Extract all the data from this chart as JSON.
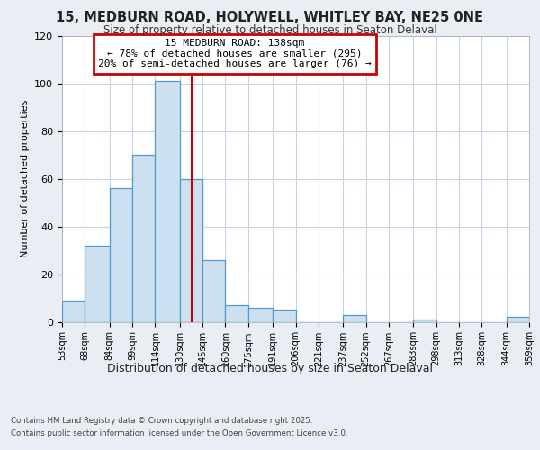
{
  "title_line1": "15, MEDBURN ROAD, HOLYWELL, WHITLEY BAY, NE25 0NE",
  "title_line2": "Size of property relative to detached houses in Seaton Delaval",
  "xlabel": "Distribution of detached houses by size in Seaton Delaval",
  "ylabel": "Number of detached properties",
  "bar_edges": [
    53,
    68,
    84,
    99,
    114,
    130,
    145,
    160,
    175,
    191,
    206,
    221,
    237,
    252,
    267,
    283,
    298,
    313,
    328,
    344,
    359
  ],
  "bar_heights": [
    9,
    32,
    56,
    70,
    101,
    60,
    26,
    7,
    6,
    5,
    0,
    0,
    3,
    0,
    0,
    1,
    0,
    0,
    0,
    2
  ],
  "bar_color": "#cce0f0",
  "bar_edgecolor": "#5599cc",
  "vline_x": 138,
  "vline_color": "#cc0000",
  "annotation_text_line1": "15 MEDBURN ROAD: 138sqm",
  "annotation_text_line2": "← 78% of detached houses are smaller (295)",
  "annotation_text_line3": "20% of semi-detached houses are larger (76) →",
  "tick_labels": [
    "53sqm",
    "68sqm",
    "84sqm",
    "99sqm",
    "114sqm",
    "130sqm",
    "145sqm",
    "160sqm",
    "175sqm",
    "191sqm",
    "206sqm",
    "221sqm",
    "237sqm",
    "252sqm",
    "267sqm",
    "283sqm",
    "298sqm",
    "313sqm",
    "328sqm",
    "344sqm",
    "359sqm"
  ],
  "ylim": [
    0,
    120
  ],
  "yticks": [
    0,
    20,
    40,
    60,
    80,
    100,
    120
  ],
  "footer_line1": "Contains HM Land Registry data © Crown copyright and database right 2025.",
  "footer_line2": "Contains public sector information licensed under the Open Government Licence v3.0.",
  "background_color": "#e8eef4",
  "plot_background": "#ffffff",
  "grid_color": "#c8d4e0"
}
